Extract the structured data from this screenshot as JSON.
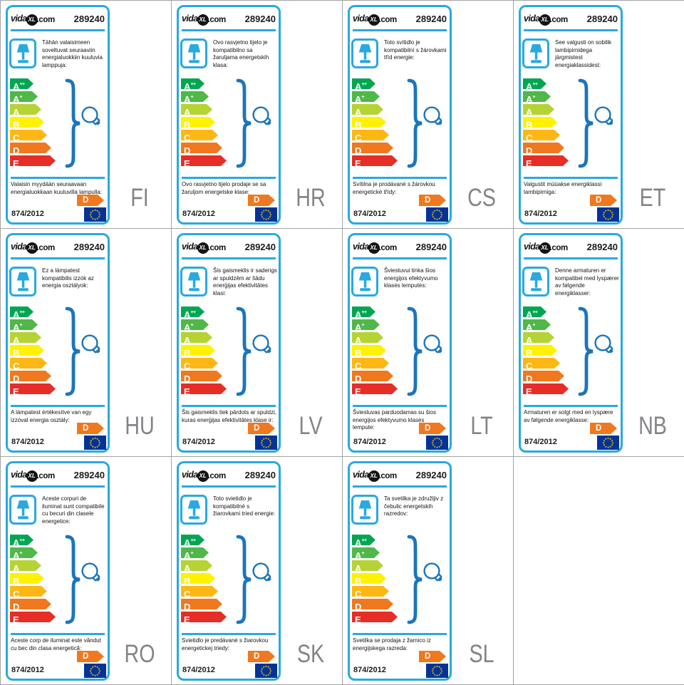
{
  "page": {
    "background": "#ffffff",
    "grid_line_color": "#a3a3a3",
    "grid": {
      "columns": 4,
      "rows": 3,
      "empty_cells": 1
    }
  },
  "icons": {
    "lamp": "table-lamp-icon",
    "bulb": "light-bulb-icon",
    "brace": "curly-brace-graphic",
    "flag": "eu-flag-icon"
  },
  "label_common": {
    "brand_prefix": "vida",
    "brand_xl": "XL",
    "brand_suffix": ".com",
    "number": "289240",
    "regulation": "874/2012",
    "sold_class": "D",
    "colors": {
      "border_blue": "#29a9e0",
      "brace_blue": "#1c75bb",
      "flag_blue": "#033398",
      "star_yellow": "#ffcc00",
      "sold_orange": "#f0781e",
      "code_gray": "#828487"
    },
    "energy_scale": [
      {
        "label": "A",
        "sup": "++",
        "color": "#00a651"
      },
      {
        "label": "A",
        "sup": "+",
        "color": "#4fb848"
      },
      {
        "label": "A",
        "sup": "",
        "color": "#b5d334"
      },
      {
        "label": "B",
        "sup": "",
        "color": "#fff200"
      },
      {
        "label": "C",
        "sup": "",
        "color": "#fdb714"
      },
      {
        "label": "D",
        "sup": "",
        "color": "#f0781e"
      },
      {
        "label": "E",
        "sup": "",
        "color": "#e62d26"
      }
    ]
  },
  "labels": [
    {
      "code": "FI",
      "top_text": "Tähän valaisimeen soveltuvat seuraaviin energialuokkiin kuuluvia lamppuja:",
      "bottom_text": "Valaisin myydään seuraavaan energialuokkaan kuuluvilla lampulla:"
    },
    {
      "code": "HR",
      "top_text": "Ovo rasvjetno tijelo je kompatibilno sa žaruljama energetskih klasa:",
      "bottom_text": "Ovo rasvjetno tijelo prodaje se sa žaruljom energetske klase:"
    },
    {
      "code": "CS",
      "top_text": "Toto svítidlo je kompatibilní s žárovkami tříd energie:",
      "bottom_text": "Svítilna je prodávané s žárovkou energetické třídy:"
    },
    {
      "code": "ET",
      "top_text": "See valgusti on sobilik lambipirnidega järgmistest energiaklassidest:",
      "bottom_text": "Valgustit müüakse energiklassi lambipirniga:"
    },
    {
      "code": "HU",
      "top_text": "Ez a lámpatest kompatibilis izzók az energia osztályok:",
      "bottom_text": "A lámpatest értékesítve van egy izzóval energia osztály:"
    },
    {
      "code": "LV",
      "top_text": "Šis gaismeklis ir saderigs ar spuldzēm ar šādu enerģijas efektivitātes klasi:",
      "bottom_text": "Šis gaismeklis tiek pārdots ar spuldzi, kuras enerģijas efektivitātes klase ir:"
    },
    {
      "code": "LT",
      "top_text": "Šviestuvui tinka šios energijos efektyvumo klasės lemputės:",
      "bottom_text": "Šviestuvas parduodamas su šios energijos efektyvumo klasės lempute:"
    },
    {
      "code": "NB",
      "top_text": "Denne armaturen er kompatibel med lyspærer av følgende energiklasser:",
      "bottom_text": "Armaturen er solgt med en lyspære av følgende energiklasse:"
    },
    {
      "code": "RO",
      "top_text": "Aceste corpuri de iluminat sunt compatibile cu becuri din clasele energetice:",
      "bottom_text": "Aceste corp de iluminat este vândut cu bec din clasa energetică:"
    },
    {
      "code": "SK",
      "top_text": "Toto svietidlo je kompatibilné s žiarovkami tried energie:",
      "bottom_text": "Svietidlo je predávané s žiarovkou energetickej triedy:"
    },
    {
      "code": "SL",
      "top_text": "Ta svetilka je združljiv z čebulic energetskih razredov:",
      "bottom_text": "Svetilka se prodaja z žarnico iz energijskega razreda:"
    }
  ]
}
